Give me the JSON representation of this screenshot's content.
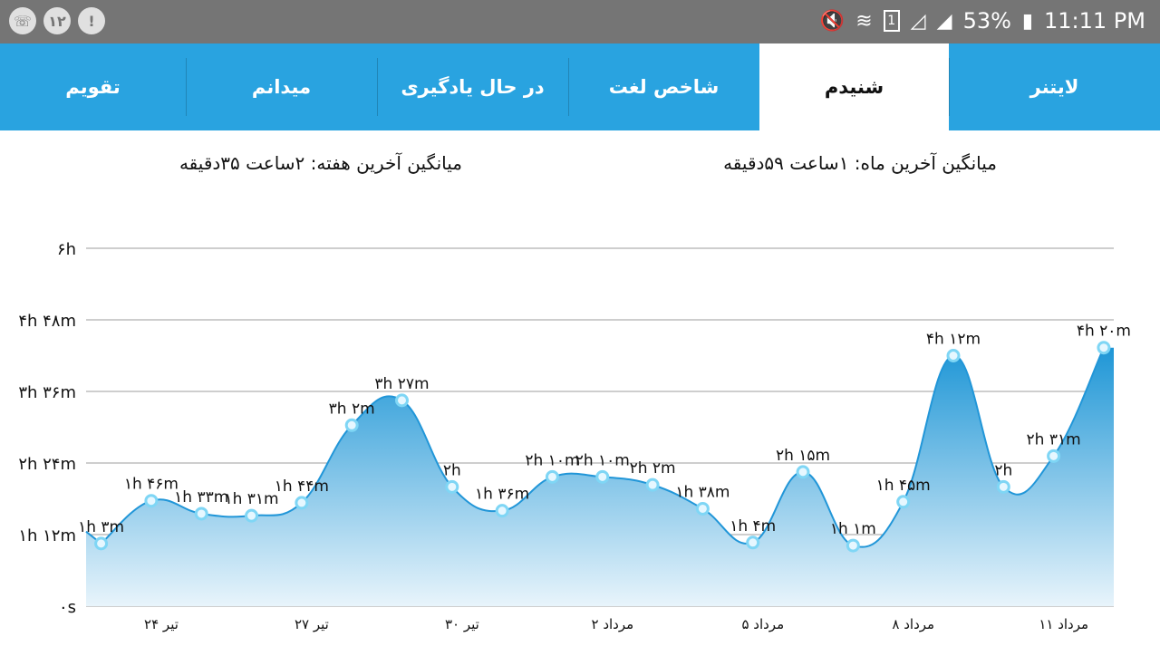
{
  "status_bar": {
    "left_icons": [
      "whatsapp-icon",
      "notification-count-icon",
      "alert-icon"
    ],
    "notification_count": "۱۲",
    "battery": "53%",
    "time": "11:11 PM",
    "sim_slot": "1",
    "right_icons": [
      "mute-icon",
      "wifi-icon",
      "sim-icon",
      "signal-icon",
      "signal-icon-2",
      "battery-icon"
    ]
  },
  "tabs": [
    {
      "label": "لایتنر",
      "active": false
    },
    {
      "label": "شنیدم",
      "active": true
    },
    {
      "label": "شاخص لغت",
      "active": false
    },
    {
      "label": "در حال یادگیری",
      "active": false
    },
    {
      "label": "میدانم",
      "active": false
    },
    {
      "label": "تقویم",
      "active": false
    }
  ],
  "stats": {
    "month_avg": "میانگین آخرین ماه: ۱ساعت  ۵۹دقیقه",
    "week_avg": "میانگین آخرین هفته: ۲ساعت  ۳۵دقیقه"
  },
  "colors": {
    "tab_bar": "#29a3e0",
    "line": "#2196d8",
    "fill_top": "#1e96d6",
    "fill_bottom": "#e8f4fb",
    "point_fill": "#e6f7ff",
    "point_stroke": "#7fd6f5",
    "grid": "#9e9e9e"
  },
  "chart_data": {
    "type": "area",
    "y_unit": "minutes",
    "ylim": [
      0,
      360
    ],
    "yticks": [
      0,
      72,
      144,
      216,
      288,
      360
    ],
    "ytick_labels": [
      "۰s",
      "۱h ۱۲m",
      "۲h ۲۴m",
      "۳h ۳۶m",
      "۴h ۴۸m",
      "۶h"
    ],
    "xlim": [
      0,
      20.5
    ],
    "xtick_positions": [
      1.5,
      4.5,
      7.5,
      10.5,
      13.5,
      16.5,
      19.5
    ],
    "xtick_labels": [
      "۲۴ تیر",
      "۲۷ تیر",
      "۳۰ تیر",
      "۲ مرداد",
      "۵ مرداد",
      "۸ مرداد",
      "۱۱ مرداد"
    ],
    "grid": true,
    "points": [
      {
        "x": 0.3,
        "y": 63,
        "label": "۱h ۳m"
      },
      {
        "x": 1.3,
        "y": 106,
        "label": "۱h ۴۶m"
      },
      {
        "x": 2.3,
        "y": 93,
        "label": "۱h ۳۳m"
      },
      {
        "x": 3.3,
        "y": 91,
        "label": "۱h ۳۱m"
      },
      {
        "x": 4.3,
        "y": 104,
        "label": "۱h ۴۴m"
      },
      {
        "x": 5.3,
        "y": 182,
        "label": "۳h ۲m"
      },
      {
        "x": 6.3,
        "y": 207,
        "label": "۳h ۲۷m"
      },
      {
        "x": 7.3,
        "y": 120,
        "label": "۲h"
      },
      {
        "x": 8.3,
        "y": 96,
        "label": "۱h ۳۶m"
      },
      {
        "x": 9.3,
        "y": 130,
        "label": "۲h ۱۰m"
      },
      {
        "x": 10.3,
        "y": 130,
        "label": "۲h ۱۰m"
      },
      {
        "x": 11.3,
        "y": 122,
        "label": "۲h ۲m"
      },
      {
        "x": 12.3,
        "y": 98,
        "label": "۱h ۳۸m"
      },
      {
        "x": 13.3,
        "y": 64,
        "label": "۱h ۴m"
      },
      {
        "x": 14.3,
        "y": 135,
        "label": "۲h ۱۵m"
      },
      {
        "x": 15.3,
        "y": 61,
        "label": "۱h ۱m"
      },
      {
        "x": 16.3,
        "y": 105,
        "label": "۱h ۴۵m"
      },
      {
        "x": 17.3,
        "y": 252,
        "label": "۴h ۱۲m"
      },
      {
        "x": 18.3,
        "y": 120,
        "label": "۲h"
      },
      {
        "x": 19.3,
        "y": 151,
        "label": "۲h ۳۱m"
      },
      {
        "x": 20.3,
        "y": 260,
        "label": "۴h ۲۰m"
      }
    ]
  }
}
